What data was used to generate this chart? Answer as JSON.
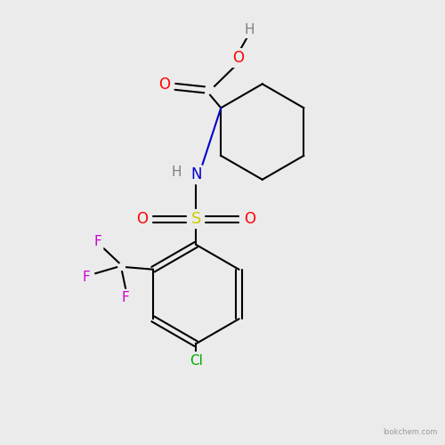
{
  "bg_color": "#ebebeb",
  "atom_colors": {
    "C": "#000000",
    "H": "#808080",
    "O": "#ff0000",
    "N": "#0000cc",
    "S": "#cccc00",
    "F": "#cc00cc",
    "Cl": "#00aa00"
  },
  "bond_color": "#000000",
  "figsize": [
    5.0,
    5.0
  ],
  "dpi": 100,
  "xlim": [
    0,
    10
  ],
  "ylim": [
    0,
    10
  ]
}
